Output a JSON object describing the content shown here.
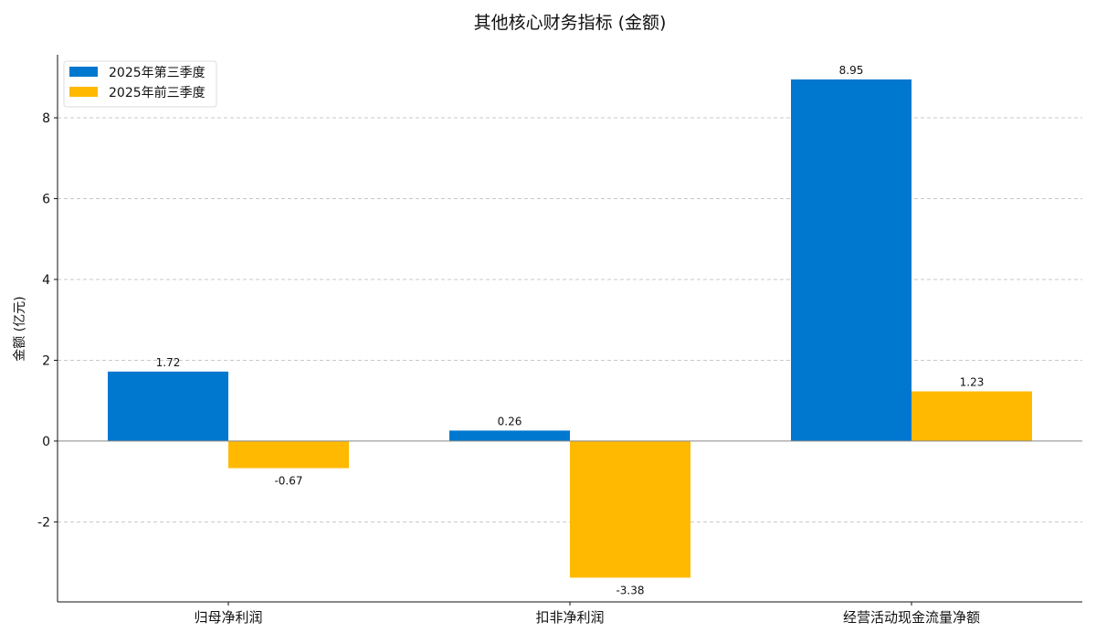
{
  "chart_data": {
    "type": "bar",
    "title": "其他核心财务指标 (金额)",
    "xlabel": "",
    "ylabel": "金额 (亿元)",
    "categories": [
      "归母净利润",
      "扣非净利润",
      "经营活动现金流量净额"
    ],
    "series": [
      {
        "name": "2025年第三季度",
        "values": [
          1.72,
          0.26,
          8.95
        ],
        "color": "#0078CF",
        "labels": [
          "1.72",
          "0.26",
          "8.95"
        ]
      },
      {
        "name": "2025年前三季度",
        "values": [
          -0.67,
          -3.38,
          1.23
        ],
        "color": "#FFB900",
        "labels": [
          "-0.67",
          "-3.38",
          "1.23"
        ]
      }
    ],
    "ylim": [
      -3.98,
      9.56
    ],
    "yticks": [
      -2,
      0,
      2,
      4,
      6,
      8
    ],
    "ytick_labels": [
      "-2",
      "0",
      "2",
      "4",
      "6",
      "8"
    ],
    "grid": "y-dashed",
    "legend_position": "top-left"
  }
}
